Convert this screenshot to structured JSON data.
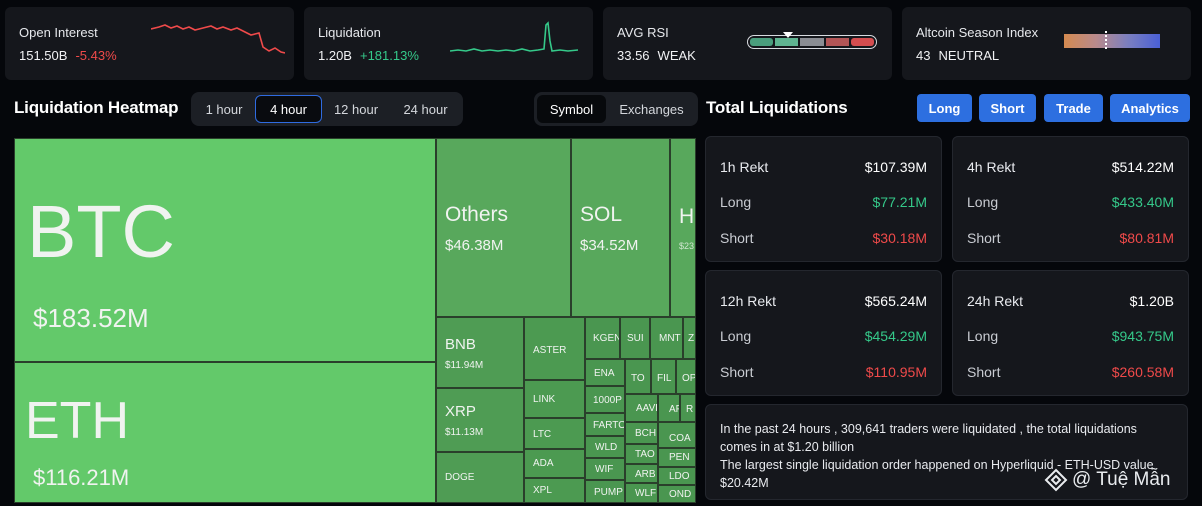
{
  "stats": {
    "open_interest": {
      "label": "Open Interest",
      "value": "151.50B",
      "change": "-5.43%"
    },
    "liquidation": {
      "label": "Liquidation",
      "value": "1.20B",
      "change": "+181.13%"
    },
    "avg_rsi": {
      "label": "AVG RSI",
      "value": "33.56",
      "status": "WEAK",
      "level": 0.34
    },
    "altcoin_season": {
      "label": "Altcoin Season Index",
      "value": "43",
      "status": "NEUTRAL",
      "level": 0.43
    }
  },
  "heatmap": {
    "title": "Liquidation Heatmap",
    "time_tabs": [
      "1 hour",
      "4 hour",
      "12 hour",
      "24 hour"
    ],
    "active_time_tab": "4 hour",
    "view_tabs": [
      "Symbol",
      "Exchanges"
    ],
    "active_view_tab": "Symbol",
    "tiles": {
      "btc": {
        "symbol": "BTC",
        "amount": "$183.52M"
      },
      "eth": {
        "symbol": "ETH",
        "amount": "$116.21M"
      },
      "others": {
        "symbol": "Others",
        "amount": "$46.38M"
      },
      "sol": {
        "symbol": "SOL",
        "amount": "$34.52M"
      },
      "hype": {
        "symbol": "H",
        "amount": "$23"
      },
      "bnb": {
        "symbol": "BNB",
        "amount": "$11.94M"
      },
      "xrp": {
        "symbol": "XRP",
        "amount": "$11.13M"
      },
      "doge": {
        "symbol": "DOGE"
      },
      "aster": {
        "symbol": "ASTER"
      },
      "link": {
        "symbol": "LINK"
      },
      "ltc": {
        "symbol": "LTC"
      },
      "ada": {
        "symbol": "ADA"
      },
      "xpl": {
        "symbol": "XPL"
      },
      "kgen": {
        "symbol": "KGEN"
      },
      "sui": {
        "symbol": "SUI"
      },
      "mnt": {
        "symbol": "MNT"
      },
      "z": {
        "symbol": "Z"
      },
      "ena": {
        "symbol": "ENA"
      },
      "to": {
        "symbol": "TO"
      },
      "fil": {
        "symbol": "FIL"
      },
      "op": {
        "symbol": "OP"
      },
      "p1000": {
        "symbol": "1000P"
      },
      "aave": {
        "symbol": "AAVE"
      },
      "af": {
        "symbol": "AF"
      },
      "r": {
        "symbol": "R"
      },
      "farto": {
        "symbol": "FARTO"
      },
      "bch": {
        "symbol": "BCH"
      },
      "coa": {
        "symbol": "COA"
      },
      "wld": {
        "symbol": "WLD"
      },
      "tao": {
        "symbol": "TAO"
      },
      "pen": {
        "symbol": "PEN"
      },
      "wif": {
        "symbol": "WIF"
      },
      "arb": {
        "symbol": "ARB"
      },
      "ldo": {
        "symbol": "LDO"
      },
      "pump": {
        "symbol": "PUMP"
      },
      "wlfi": {
        "symbol": "WLFI"
      },
      "ond": {
        "symbol": "OND"
      }
    }
  },
  "total": {
    "title": "Total Liquidations",
    "buttons": [
      "Long",
      "Short",
      "Trade",
      "Analytics"
    ],
    "cards": [
      {
        "title": "1h Rekt",
        "total": "$107.39M",
        "long_label": "Long",
        "long": "$77.21M",
        "short_label": "Short",
        "short": "$30.18M"
      },
      {
        "title": "4h Rekt",
        "total": "$514.22M",
        "long_label": "Long",
        "long": "$433.40M",
        "short_label": "Short",
        "short": "$80.81M"
      },
      {
        "title": "12h Rekt",
        "total": "$565.24M",
        "long_label": "Long",
        "long": "$454.29M",
        "short_label": "Short",
        "short": "$110.95M"
      },
      {
        "title": "24h Rekt",
        "total": "$1.20B",
        "long_label": "Long",
        "long": "$943.75M",
        "short_label": "Short",
        "short": "$260.58M"
      }
    ],
    "summary_line1": "In the past 24 hours , 309,641 traders were liquidated , the total liquidations comes in at $1.20 billion",
    "summary_line2": "The largest single liquidation order happened on Hyperliquid - ETH-USD value $20.42M"
  },
  "watermark": "@ Tuệ Mẫn",
  "colors": {
    "up": "#35c98a",
    "down": "#ef4a4a",
    "accent": "#2d6fe0",
    "tile_big": "#63c96a",
    "tile_mid": "#4c9a51"
  }
}
